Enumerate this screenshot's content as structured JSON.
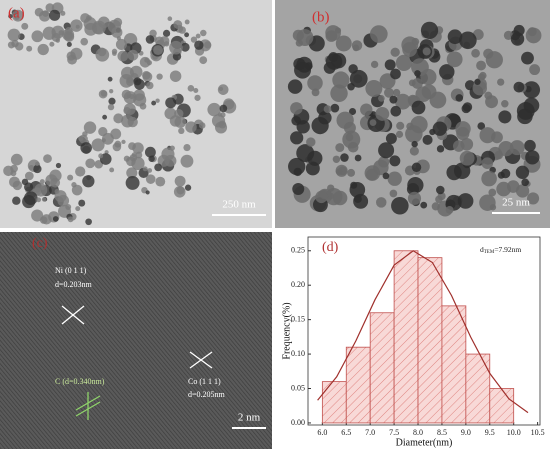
{
  "panels": [
    {
      "label": "(a)",
      "scale_bar": "250 nm"
    },
    {
      "label": "(b)",
      "scale_bar": "25 nm"
    },
    {
      "label": "(c)",
      "scale_bar": "2 nm"
    }
  ],
  "lattice_annotations": {
    "ni_plane": "Ni (0 1 1)",
    "ni_spacing": "d=0.203nm",
    "c_spacing": "C (d=0.340nm)",
    "co_plane": "Co (1 1 1)",
    "co_spacing": "d=0.205nm"
  },
  "chart_data": {
    "type": "histogram",
    "label": "(d)",
    "annotation": {
      "base": "d",
      "subscript": "TEM",
      "text": "=7.92nm"
    },
    "x_label": "Diameter(nm)",
    "y_label": "Frequency(%)",
    "bins": [
      6.0,
      6.5,
      7.0,
      7.5,
      8.0,
      8.5,
      9.0,
      9.5,
      10.0
    ],
    "values": [
      0.06,
      0.11,
      0.16,
      0.25,
      0.24,
      0.17,
      0.1,
      0.05
    ],
    "color": "#c0504d",
    "fill": "#f8d9d7",
    "fit": {
      "x": [
        5.9,
        6.3,
        6.7,
        7.1,
        7.5,
        7.9,
        8.3,
        8.7,
        9.1,
        9.5,
        9.9,
        10.3
      ],
      "values": [
        0.033,
        0.067,
        0.119,
        0.179,
        0.229,
        0.25,
        0.233,
        0.185,
        0.125,
        0.072,
        0.035,
        0.015
      ],
      "color": "#a0302c"
    },
    "xlim": [
      5.7,
      10.55
    ],
    "ylim": [
      -0.003,
      0.27
    ],
    "xticks": [
      {
        "value": 6,
        "label": "6.0"
      },
      {
        "value": 6.5,
        "label": "6.5"
      },
      {
        "value": 7,
        "label": "7.0"
      },
      {
        "value": 7.5,
        "label": "7.5"
      },
      {
        "value": 8,
        "label": "8.0"
      },
      {
        "value": 8.5,
        "label": "8.5"
      },
      {
        "value": 9,
        "label": "9.0"
      },
      {
        "value": 9.5,
        "label": "9.5"
      },
      {
        "value": 10,
        "label": "10.0"
      },
      {
        "value": 10.5,
        "label": "10.5"
      }
    ],
    "yticks": [
      {
        "value": 0,
        "label": "0.00"
      },
      {
        "value": 0.05,
        "label": "0.05"
      },
      {
        "value": 0.1,
        "label": "0.10"
      },
      {
        "value": 0.15,
        "label": "0.15"
      },
      {
        "value": 0.2,
        "label": "0.20"
      },
      {
        "value": 0.25,
        "label": "0.25"
      }
    ]
  }
}
